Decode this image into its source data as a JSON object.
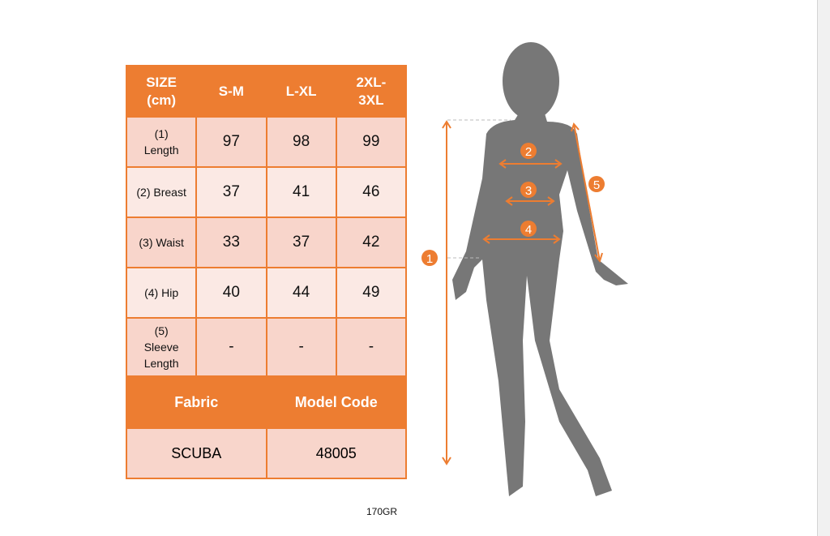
{
  "table": {
    "headers": [
      "SIZE\n(cm)",
      "S-M",
      "L-XL",
      "2XL-\n3XL"
    ],
    "rows": [
      {
        "label": "(1)\nLength",
        "values": [
          "97",
          "98",
          "99"
        ]
      },
      {
        "label": "(2) Breast",
        "values": [
          "37",
          "41",
          "46"
        ]
      },
      {
        "label": "(3) Waist",
        "values": [
          "33",
          "37",
          "42"
        ]
      },
      {
        "label": "(4) Hip",
        "values": [
          "40",
          "44",
          "49"
        ]
      },
      {
        "label": "(5)\nSleeve\nLength",
        "values": [
          "-",
          "-",
          "-"
        ]
      }
    ],
    "footer_headers": [
      "Fabric",
      "Model Code"
    ],
    "footer_values": [
      "SCUBA",
      "48005"
    ]
  },
  "caption": "170GR",
  "figure": {
    "markers": [
      "1",
      "2",
      "3",
      "4",
      "5"
    ]
  },
  "colors": {
    "accent": "#ed7d31",
    "row_dark": "#f8d5cb",
    "row_light": "#fbe9e4",
    "silhouette": "#777777"
  }
}
